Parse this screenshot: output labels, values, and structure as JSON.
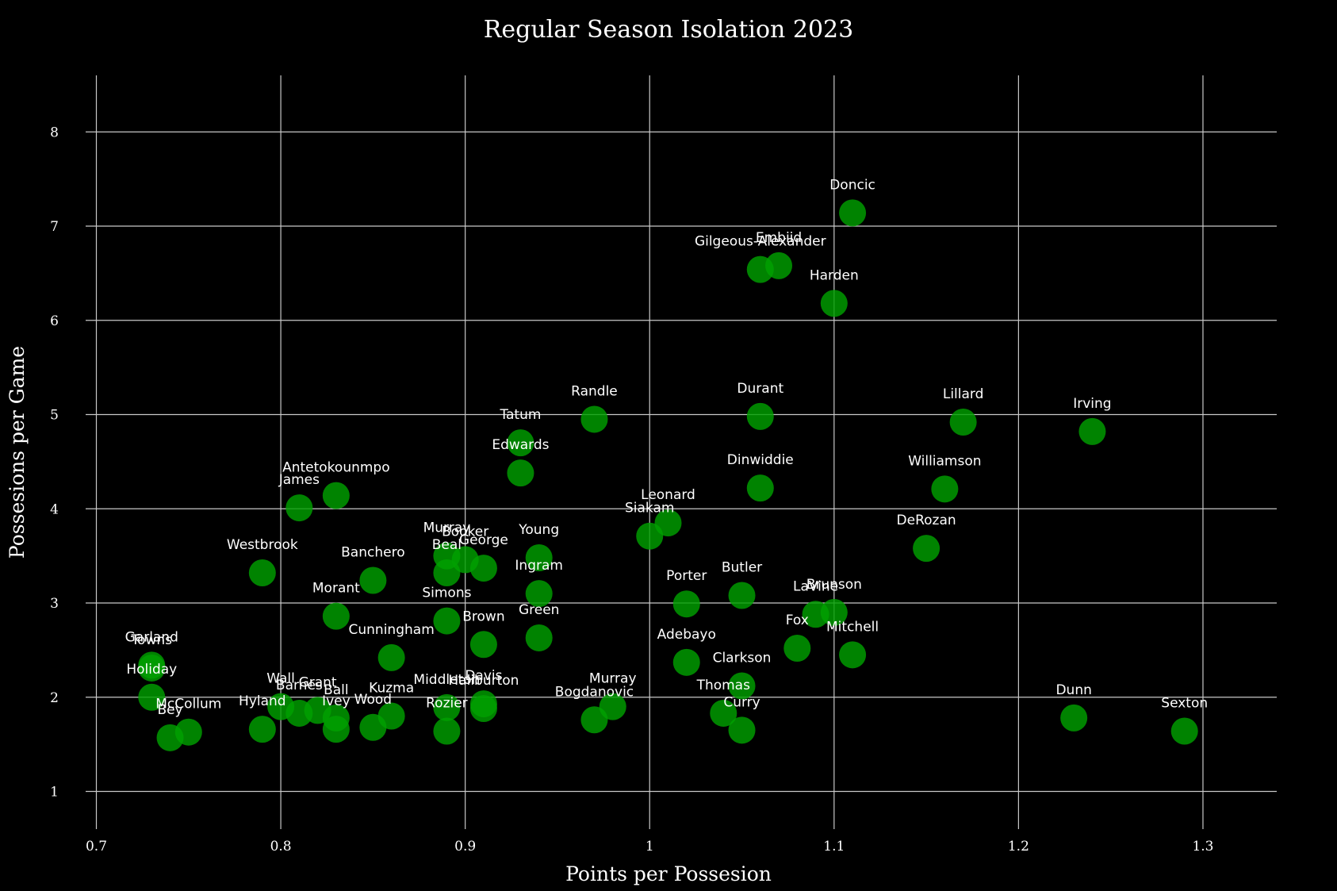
{
  "colors": {
    "background": "#000000",
    "marker": "#00a000",
    "marker_highlight": "#00e000",
    "grid": "#c8c8c8",
    "text": "#ffffff"
  },
  "chart_data": {
    "type": "scatter",
    "title": "Regular Season Isolation 2023",
    "xlabel": "Points per Possesion",
    "ylabel": "Possesions per Game",
    "xlim": [
      0.68,
      1.34
    ],
    "ylim": [
      0.6,
      8.6
    ],
    "xticks": [
      0.7,
      0.8,
      0.9,
      1,
      1.1,
      1.2,
      1.3
    ],
    "xtick_labels": [
      "0.7",
      "0.8",
      "0.9",
      "1",
      "1.1",
      "1.2",
      "1.3"
    ],
    "yticks": [
      1,
      2,
      3,
      4,
      5,
      6,
      7,
      8
    ],
    "ytick_labels": [
      "1",
      "2",
      "3",
      "4",
      "5",
      "6",
      "7",
      "8"
    ],
    "grid": true,
    "legend": false,
    "points": [
      {
        "label": "Doncic",
        "x": 1.11,
        "y": 7.14
      },
      {
        "label": "Embiid",
        "x": 1.07,
        "y": 6.58
      },
      {
        "label": "Gilgeous-Alexander",
        "x": 1.06,
        "y": 6.54
      },
      {
        "label": "Harden",
        "x": 1.1,
        "y": 6.18
      },
      {
        "label": "Randle",
        "x": 0.97,
        "y": 4.95
      },
      {
        "label": "Durant",
        "x": 1.06,
        "y": 4.98
      },
      {
        "label": "Lillard",
        "x": 1.17,
        "y": 4.92
      },
      {
        "label": "Irving",
        "x": 1.24,
        "y": 4.82
      },
      {
        "label": "Tatum",
        "x": 0.93,
        "y": 4.7
      },
      {
        "label": "Edwards",
        "x": 0.93,
        "y": 4.38
      },
      {
        "label": "Dinwiddie",
        "x": 1.06,
        "y": 4.22
      },
      {
        "label": "Williamson",
        "x": 1.16,
        "y": 4.21
      },
      {
        "label": "Antetokounmpo",
        "x": 0.83,
        "y": 4.14
      },
      {
        "label": "James",
        "x": 0.81,
        "y": 4.01
      },
      {
        "label": "Leonard",
        "x": 1.01,
        "y": 3.85
      },
      {
        "label": "Siakam",
        "x": 1.0,
        "y": 3.71
      },
      {
        "label": "DeRozan",
        "x": 1.15,
        "y": 3.58
      },
      {
        "label": "Murray",
        "x": 0.89,
        "y": 3.5
      },
      {
        "label": "Booker",
        "x": 0.9,
        "y": 3.46
      },
      {
        "label": "Young",
        "x": 0.94,
        "y": 3.48
      },
      {
        "label": "Beal",
        "x": 0.89,
        "y": 3.32
      },
      {
        "label": "George",
        "x": 0.91,
        "y": 3.37
      },
      {
        "label": "Westbrook",
        "x": 0.79,
        "y": 3.32
      },
      {
        "label": "Banchero",
        "x": 0.85,
        "y": 3.24
      },
      {
        "label": "Ingram",
        "x": 0.94,
        "y": 3.1
      },
      {
        "label": "Butler",
        "x": 1.05,
        "y": 3.08
      },
      {
        "label": "Porter",
        "x": 1.02,
        "y": 2.99
      },
      {
        "label": "LaVine",
        "x": 1.09,
        "y": 2.88
      },
      {
        "label": "Brunson",
        "x": 1.1,
        "y": 2.9
      },
      {
        "label": "Morant",
        "x": 0.83,
        "y": 2.86
      },
      {
        "label": "Simons",
        "x": 0.89,
        "y": 2.81
      },
      {
        "label": "Green",
        "x": 0.94,
        "y": 2.63
      },
      {
        "label": "Brown",
        "x": 0.91,
        "y": 2.56
      },
      {
        "label": "Fox",
        "x": 1.08,
        "y": 2.52
      },
      {
        "label": "Mitchell",
        "x": 1.11,
        "y": 2.45
      },
      {
        "label": "Cunningham",
        "x": 0.86,
        "y": 2.42
      },
      {
        "label": "Adebayo",
        "x": 1.02,
        "y": 2.37
      },
      {
        "label": "Garland",
        "x": 0.73,
        "y": 2.34
      },
      {
        "label": "Towns",
        "x": 0.73,
        "y": 2.31
      },
      {
        "label": "Clarkson",
        "x": 1.05,
        "y": 2.12
      },
      {
        "label": "Holiday",
        "x": 0.73,
        "y": 2.0
      },
      {
        "label": "Wall",
        "x": 0.8,
        "y": 1.9
      },
      {
        "label": "Grant",
        "x": 0.82,
        "y": 1.86
      },
      {
        "label": "Barnes",
        "x": 0.81,
        "y": 1.83
      },
      {
        "label": "Ball",
        "x": 0.83,
        "y": 1.78
      },
      {
        "label": "Middleton",
        "x": 0.89,
        "y": 1.89
      },
      {
        "label": "Davis",
        "x": 0.91,
        "y": 1.93
      },
      {
        "label": "Haliburton",
        "x": 0.91,
        "y": 1.88
      },
      {
        "label": "Murray",
        "x": 0.98,
        "y": 1.9
      },
      {
        "label": "Thomas",
        "x": 1.04,
        "y": 1.83
      },
      {
        "label": "Kuzma",
        "x": 0.86,
        "y": 1.8
      },
      {
        "label": "Bogdanovic",
        "x": 0.97,
        "y": 1.76
      },
      {
        "label": "Dunn",
        "x": 1.23,
        "y": 1.78
      },
      {
        "label": "Wood",
        "x": 0.85,
        "y": 1.68
      },
      {
        "label": "Ivey",
        "x": 0.83,
        "y": 1.66
      },
      {
        "label": "Hyland",
        "x": 0.79,
        "y": 1.66
      },
      {
        "label": "McCollum",
        "x": 0.75,
        "y": 1.63
      },
      {
        "label": "Rozier",
        "x": 0.89,
        "y": 1.64
      },
      {
        "label": "Curry",
        "x": 1.05,
        "y": 1.65
      },
      {
        "label": "Sexton",
        "x": 1.29,
        "y": 1.64
      },
      {
        "label": "Bey",
        "x": 0.74,
        "y": 1.57
      }
    ]
  }
}
